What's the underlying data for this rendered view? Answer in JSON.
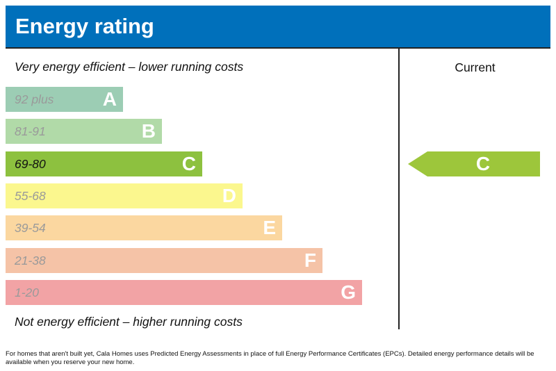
{
  "header": {
    "title": "Energy rating"
  },
  "captions": {
    "top": "Very energy efficient – lower running costs",
    "bottom": "Not energy efficient – higher running costs"
  },
  "current": {
    "label": "Current",
    "rating": "C",
    "color": "#9dc63b"
  },
  "bands": [
    {
      "range": "92 plus",
      "letter": "A",
      "color": "#9ccdb4"
    },
    {
      "range": "81-91",
      "letter": "B",
      "color": "#b1daa8"
    },
    {
      "range": "69-80",
      "letter": "C",
      "color": "#8dc13f"
    },
    {
      "range": "55-68",
      "letter": "D",
      "color": "#fbf78e"
    },
    {
      "range": "39-54",
      "letter": "E",
      "color": "#fbd7a0"
    },
    {
      "range": "21-38",
      "letter": "F",
      "color": "#f5c3a7"
    },
    {
      "range": "1-20",
      "letter": "G",
      "color": "#f2a3a5"
    }
  ],
  "footnote": "For homes that aren't built yet, Cala Homes uses Predicted Energy Assessments in place of full Energy Performance Certificates (EPCs). Detailed energy performance details will be available when you reserve your new home."
}
